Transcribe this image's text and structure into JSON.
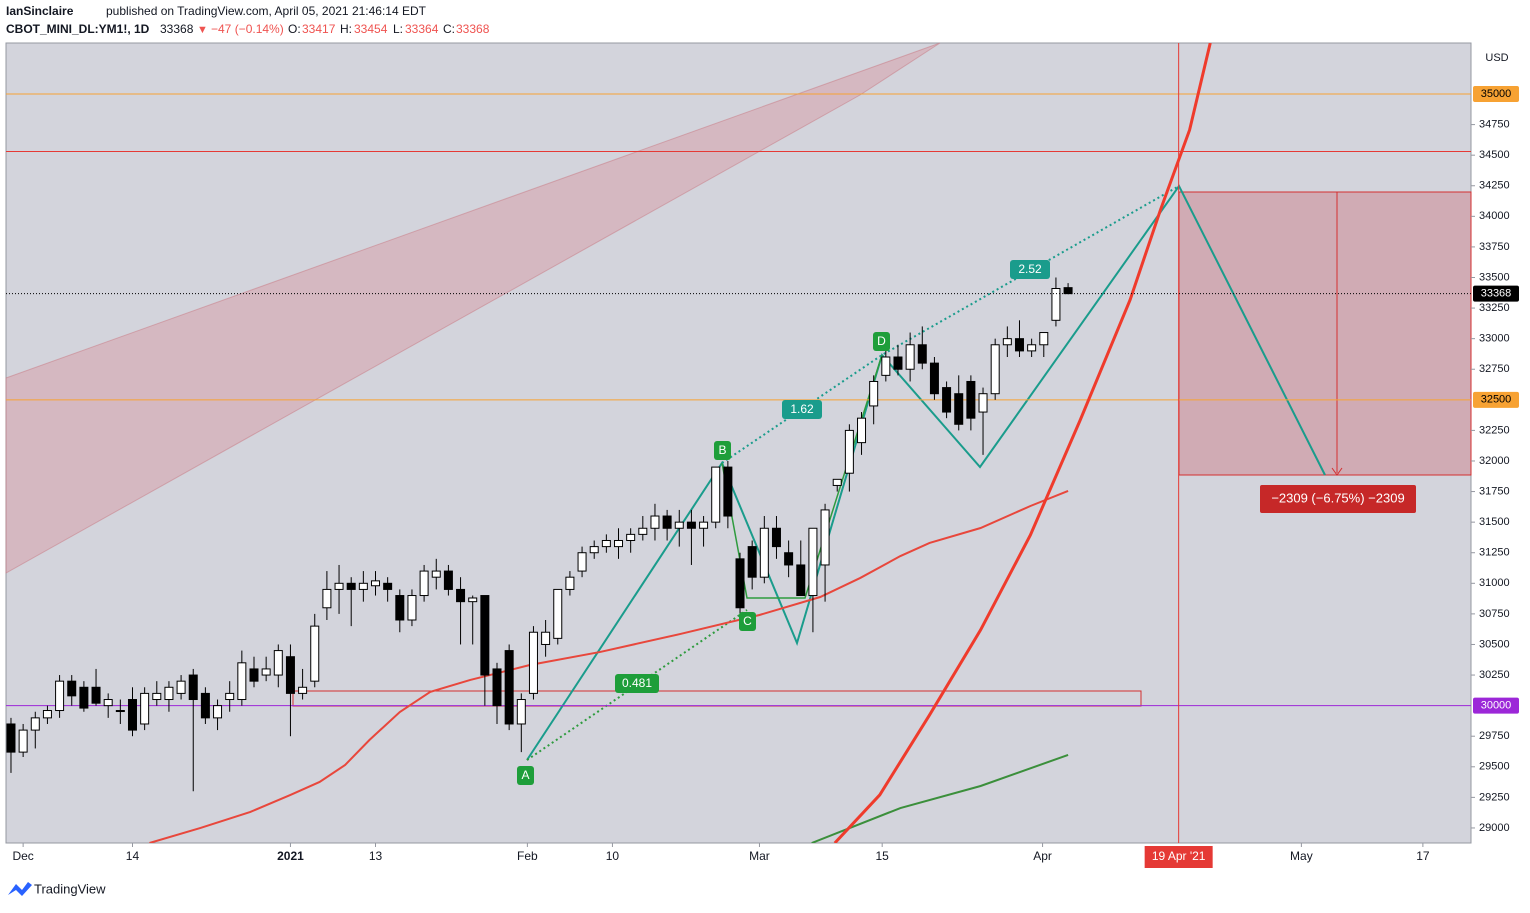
{
  "header": {
    "author": "IanSinclaire",
    "published": "published on TradingView.com, April 05, 2021 21:46:14 EDT",
    "symbol": "CBOT_MINI_DL:YM1!, 1D",
    "last": "33368",
    "arrow": "▼",
    "change": "−47 (−0.14%)",
    "ohlc": [
      "O:",
      "33417",
      "H:",
      "33454",
      "L:",
      "33364",
      "C:",
      "33368"
    ]
  },
  "chart_data": {
    "type": "candlestick",
    "currency": "USD",
    "x": [
      0,
      1,
      2,
      3,
      4,
      5,
      6,
      7,
      8,
      9,
      10,
      11,
      12,
      13,
      14,
      15,
      16,
      17,
      18,
      19,
      20,
      21,
      22,
      23,
      24,
      25,
      26,
      27,
      28,
      29,
      30,
      31,
      32,
      33,
      34,
      35,
      36,
      37,
      38,
      39,
      40,
      41,
      42,
      43,
      44,
      45,
      46,
      47,
      48,
      49,
      50,
      51,
      52,
      53,
      54,
      55,
      56,
      57,
      58,
      59,
      60,
      61,
      62,
      63,
      64,
      65,
      66,
      67,
      68,
      69,
      70,
      71,
      72,
      73,
      74,
      75,
      76,
      77,
      78,
      79,
      80,
      81,
      82,
      83,
      84,
      85,
      86,
      87
    ],
    "open": [
      29850,
      29620,
      29800,
      29900,
      29960,
      30200,
      30150,
      30150,
      30000,
      29960,
      30050,
      29850,
      30050,
      30050,
      30100,
      30250,
      30100,
      29900,
      30050,
      30050,
      30300,
      30250,
      30250,
      30400,
      30100,
      30200,
      30800,
      30950,
      31000,
      30950,
      30980,
      31000,
      30900,
      30700,
      30900,
      31050,
      31100,
      30950,
      30850,
      30900,
      30300,
      30450,
      29850,
      30100,
      30500,
      30550,
      30950,
      31100,
      31250,
      31300,
      31300,
      31350,
      31400,
      31450,
      31550,
      31450,
      31500,
      31450,
      31500,
      31950,
      31200,
      31300,
      31050,
      31450,
      31250,
      31150,
      30900,
      31150,
      31800,
      31900,
      32150,
      32450,
      32700,
      32850,
      32750,
      32950,
      32800,
      32600,
      32550,
      32650,
      32400,
      32550,
      32950,
      33000,
      32900,
      32950,
      33150,
      33417
    ],
    "high": [
      29900,
      29850,
      29950,
      30000,
      30250,
      30250,
      30200,
      30300,
      30100,
      30050,
      30150,
      30150,
      30200,
      30200,
      30250,
      30300,
      30150,
      30050,
      30200,
      30450,
      30400,
      30400,
      30500,
      30500,
      30300,
      30750,
      31100,
      31150,
      31050,
      31100,
      31100,
      31050,
      30950,
      30950,
      31150,
      31200,
      31150,
      31050,
      30900,
      30900,
      30350,
      30500,
      30100,
      30650,
      30700,
      30950,
      31100,
      31300,
      31350,
      31400,
      31450,
      31450,
      31550,
      31650,
      31600,
      31600,
      31600,
      31550,
      31950,
      32000,
      31250,
      31350,
      31550,
      31550,
      31350,
      31350,
      31450,
      31650,
      31850,
      32300,
      32400,
      32700,
      32900,
      32950,
      33050,
      33100,
      32850,
      32650,
      32700,
      32700,
      32600,
      33000,
      33100,
      33150,
      33000,
      33050,
      33500,
      33454
    ],
    "low": [
      29450,
      29580,
      29650,
      29850,
      29900,
      30000,
      29950,
      30000,
      29900,
      29850,
      29750,
      29800,
      30000,
      29950,
      30050,
      29300,
      29850,
      29800,
      29950,
      30000,
      30150,
      30200,
      30150,
      29750,
      30050,
      30150,
      30700,
      30750,
      30650,
      30850,
      30900,
      30850,
      30600,
      30650,
      30850,
      30950,
      30900,
      30500,
      30500,
      30000,
      29850,
      29800,
      29620,
      30050,
      30400,
      30500,
      30900,
      31050,
      31200,
      31250,
      31200,
      31250,
      31350,
      31350,
      31350,
      31300,
      31150,
      31300,
      31450,
      31450,
      30750,
      30950,
      31000,
      31200,
      31050,
      30900,
      30600,
      30850,
      31750,
      31750,
      32050,
      32300,
      32650,
      32700,
      32650,
      32750,
      32500,
      32350,
      32250,
      32250,
      32050,
      32500,
      32850,
      32850,
      32850,
      32850,
      33100,
      33364
    ],
    "close": [
      29620,
      29800,
      29900,
      29960,
      30200,
      30080,
      29980,
      30020,
      30050,
      29960,
      29800,
      30100,
      30100,
      30150,
      30200,
      30050,
      29900,
      30000,
      30100,
      30350,
      30200,
      30300,
      30450,
      30100,
      30150,
      30650,
      30950,
      31000,
      30950,
      31000,
      31020,
      30950,
      30700,
      30900,
      31100,
      31100,
      30950,
      30850,
      30880,
      30250,
      30000,
      29850,
      30050,
      30600,
      30600,
      30950,
      31050,
      31250,
      31300,
      31350,
      31350,
      31400,
      31450,
      31550,
      31450,
      31500,
      31450,
      31500,
      31950,
      31550,
      30800,
      31050,
      31450,
      31300,
      31150,
      30900,
      31450,
      31600,
      31850,
      32250,
      32350,
      32650,
      32850,
      32750,
      32950,
      32800,
      32550,
      32400,
      32300,
      32350,
      32550,
      32950,
      33000,
      32900,
      32950,
      33050,
      33410,
      33368
    ],
    "up_color": "#ffffff",
    "down_color": "#000000",
    "xlim": [
      -0.41,
      120.16
    ],
    "ylim": [
      28877,
      35417
    ],
    "xticks": [
      {
        "value": 1,
        "label": "Dec"
      },
      {
        "value": 10,
        "label": "14"
      },
      {
        "value": 23,
        "label": "2021",
        "bold": true
      },
      {
        "value": 30,
        "label": "13"
      },
      {
        "value": 42.5,
        "label": "Feb"
      },
      {
        "value": 49.5,
        "label": "10"
      },
      {
        "value": 61.6,
        "label": "Mar"
      },
      {
        "value": 71.7,
        "label": "15"
      },
      {
        "value": 84.9,
        "label": "Apr"
      },
      {
        "value": 106.2,
        "label": "May"
      },
      {
        "value": 116.2,
        "label": "17"
      }
    ],
    "yticks": [
      29000,
      29250,
      29500,
      29750,
      30250,
      30500,
      30750,
      31000,
      31250,
      31500,
      31750,
      32000,
      32250,
      32750,
      33000,
      33250,
      33500,
      33750,
      34000,
      34250,
      34500,
      34750
    ],
    "hlines": [
      {
        "value": 35000,
        "color": "#f7a233",
        "labeled": true,
        "text_color": "#000000"
      },
      {
        "value": 34530,
        "color": "#e53935",
        "labeled": false
      },
      {
        "value": 32500,
        "color": "#f7a233",
        "labeled": true,
        "text_color": "#000000"
      },
      {
        "value": 30000,
        "color": "#9c27d8",
        "labeled": true,
        "text_color": "#ffffff"
      }
    ],
    "last_price": 33368,
    "marker_x": {
      "value": 96.1,
      "label": "19 Apr '21",
      "color": "#e53935"
    },
    "lines": [
      {
        "color": "#e8473c",
        "width": 2,
        "x": [
          11.4,
          15.6,
          19.7,
          23.0,
          25.4,
          27.5,
          29.5,
          32.0,
          34.5,
          37.8,
          42.7,
          48.5,
          55.1,
          61.6,
          66.6,
          69.9,
          73.2,
          75.6,
          79.8,
          83.9,
          87
        ],
        "values": [
          28877,
          29000,
          29131,
          29270,
          29376,
          29515,
          29719,
          29948,
          30112,
          30210,
          30332,
          30439,
          30586,
          30741,
          30888,
          31044,
          31223,
          31330,
          31452,
          31632,
          31755
        ]
      },
      {
        "color": "#3b8f3b",
        "width": 2,
        "x": [
          65.9,
          73.2,
          79.8,
          87
        ],
        "values": [
          28877,
          29163,
          29343,
          29597
        ]
      },
      {
        "color": "#ef3b2c",
        "width": 3,
        "x": [
          67.8,
          71.5,
          75.6,
          79.8,
          83.9,
          88.0,
          92.1,
          94.6,
          97.0,
          98.7
        ],
        "values": [
          28877,
          29270,
          29924,
          30619,
          31395,
          32335,
          33316,
          34052,
          34706,
          35417
        ]
      }
    ]
  },
  "annotations": {
    "pattern": [
      "A",
      "B",
      "C",
      "D"
    ],
    "ratios": [
      "0.481",
      "1.62",
      "2.52"
    ],
    "position": "−2309 (−6.75%) −2309"
  },
  "footer": "TradingView"
}
